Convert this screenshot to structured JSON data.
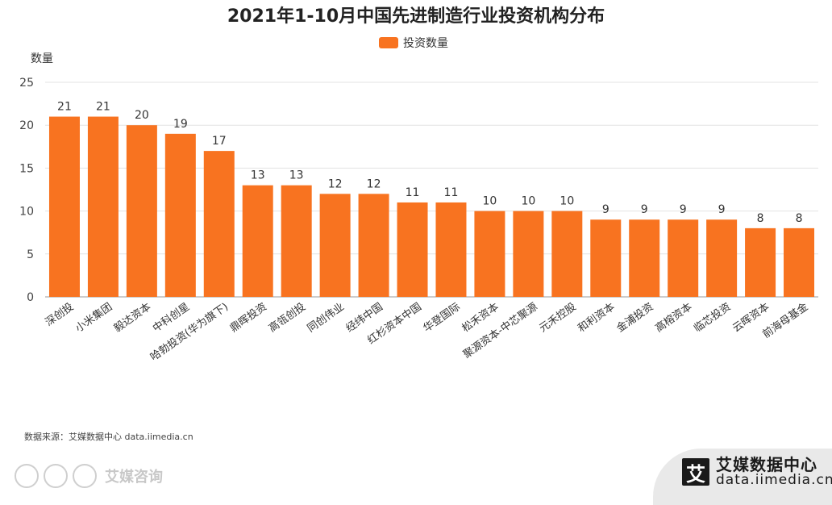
{
  "chart_data": {
    "type": "bar",
    "title": "2021年1-10月中国先进制造行业投资机构分布",
    "legend": [
      "投资数量"
    ],
    "xlabel": "",
    "ylabel": "数量",
    "ylim": [
      0,
      25
    ],
    "yticks": [
      0,
      5,
      10,
      15,
      20,
      25
    ],
    "grid": true,
    "categories": [
      "深创投",
      "小米集团",
      "毅达资本",
      "中科创星",
      "哈勃投资(华为旗下)",
      "鼎晖投资",
      "高瓴创投",
      "同创伟业",
      "经纬中国",
      "红杉资本中国",
      "华登国际",
      "松禾资本",
      "聚源资本-中芯聚源",
      "元禾控股",
      "和利资本",
      "金浦投资",
      "高榕资本",
      "临芯投资",
      "云晖资本",
      "前海母基金"
    ],
    "series": [
      {
        "name": "投资数量",
        "values": [
          21,
          21,
          20,
          19,
          17,
          13,
          13,
          12,
          12,
          11,
          11,
          10,
          10,
          10,
          9,
          9,
          9,
          9,
          8,
          8
        ]
      }
    ],
    "bar_color": "#f87320"
  },
  "source_note": "数据来源：艾媒数据中心 data.iimedia.cn",
  "watermark": {
    "text": "艾媒咨询"
  },
  "brand": {
    "name": "艾媒数据中心",
    "url": "data.iimedia.cn",
    "logo_char": "艾"
  }
}
